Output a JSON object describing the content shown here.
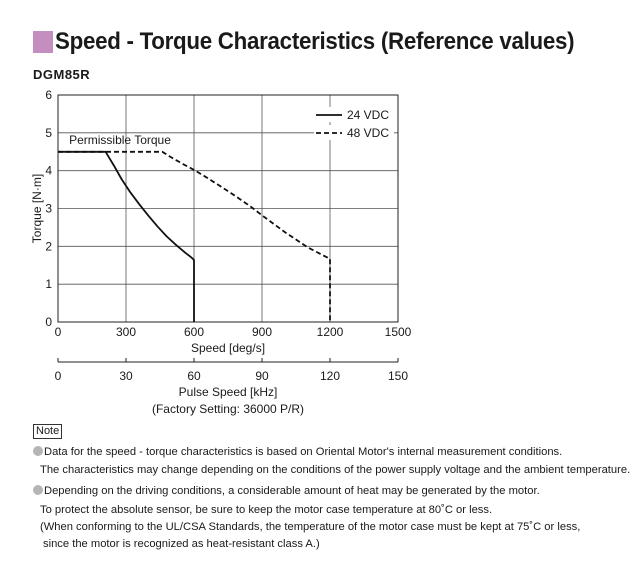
{
  "section_title": "Speed - Torque Characteristics (Reference values)",
  "accent_color": "#c48fc0",
  "model": "DGM85R",
  "chart_data": {
    "type": "line",
    "title": "",
    "ylabel": "Torque [N·m]",
    "xlabel": "Speed [deg/s]",
    "xlim": [
      0,
      1500
    ],
    "ylim": [
      0,
      6
    ],
    "x_ticks": [
      0,
      300,
      600,
      900,
      1200,
      1500
    ],
    "y_ticks": [
      0,
      1,
      2,
      3,
      4,
      5,
      6
    ],
    "grid": true,
    "legend_position": "top-right",
    "annotation": "Permissible Torque",
    "secondary_axis": {
      "label_line1": "Pulse Speed [kHz]",
      "label_line2": "(Factory Setting: 36000 P/R)",
      "ticks": [
        0,
        30,
        60,
        90,
        120,
        150
      ]
    },
    "series": [
      {
        "name": "24 VDC",
        "style": "solid",
        "x": [
          0,
          210,
          230,
          250,
          280,
          320,
          360,
          400,
          440,
          480,
          520,
          560,
          590,
          600,
          600
        ],
        "y": [
          4.5,
          4.5,
          4.3,
          4.1,
          3.78,
          3.42,
          3.1,
          2.8,
          2.52,
          2.26,
          2.04,
          1.84,
          1.7,
          1.64,
          0
        ]
      },
      {
        "name": "48 VDC",
        "style": "dashed",
        "x": [
          0,
          460,
          500,
          550,
          600,
          650,
          700,
          750,
          800,
          850,
          900,
          950,
          1000,
          1050,
          1100,
          1150,
          1200,
          1200
        ],
        "y": [
          4.5,
          4.5,
          4.35,
          4.18,
          4.02,
          3.84,
          3.65,
          3.46,
          3.26,
          3.05,
          2.82,
          2.6,
          2.38,
          2.18,
          1.98,
          1.82,
          1.67,
          0
        ]
      }
    ]
  },
  "notes": {
    "tag": "Note",
    "lines": [
      "Data for the speed - torque characteristics is based on Oriental Motor's internal measurement conditions.",
      "The characteristics may change depending on the conditions of the power supply voltage and the ambient temperature.",
      "Depending on the driving conditions, a considerable amount of heat may be generated by the motor.",
      "To protect the absolute sensor, be sure to keep the motor case temperature at 80˚C or less.",
      "(When conforming to the UL/CSA Standards, the temperature of the motor case must be kept at 75˚C or less,",
      "since the motor is recognized as heat-resistant class A.)"
    ]
  }
}
